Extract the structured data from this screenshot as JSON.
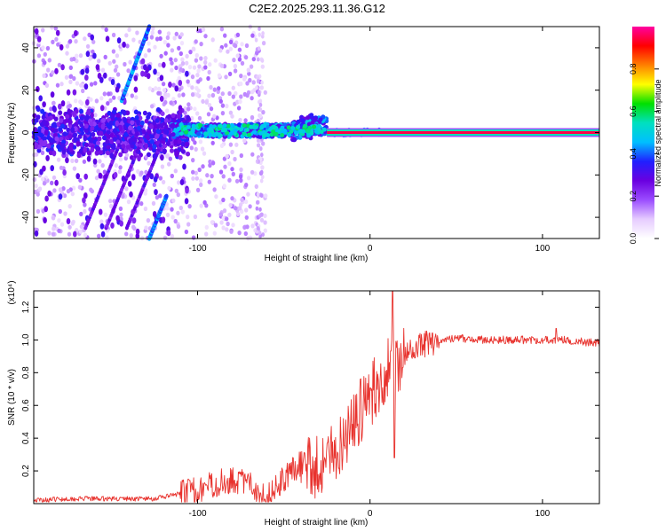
{
  "figure_title": "C2E2.2025.293.11.36.G12",
  "chart_data": [
    {
      "type": "heatmap",
      "xlabel": "Height of straight line (km)",
      "ylabel": "Frequency (Hz)",
      "xlim": [
        -195,
        133
      ],
      "ylim": [
        -50,
        50
      ],
      "xticks": [
        -100,
        0,
        100
      ],
      "xtick_labels": [
        "-100",
        "0",
        "100"
      ],
      "yticks": [
        -40,
        -20,
        0,
        20,
        40
      ],
      "ytick_labels": [
        "-40",
        "-20",
        "0",
        "20",
        "40"
      ],
      "colorbar": {
        "label": "Normalized spectral amplitude",
        "range": [
          0,
          1
        ],
        "ticks": [
          0,
          0.2,
          0.4,
          0.6,
          0.8
        ],
        "tick_labels": [
          "0.0",
          "0.2",
          "0.4",
          "0.6",
          "0.8"
        ],
        "colormap": [
          "#ffffff",
          "#e6ccff",
          "#9b4dff",
          "#6a00e0",
          "#2020ff",
          "#00bfff",
          "#00e0c0",
          "#00e000",
          "#ffff00",
          "#ff8000",
          "#ff0000",
          "#ff00a0"
        ]
      },
      "features": [
        {
          "name": "carrier line",
          "x_range": [
            -25,
            133
          ],
          "frequency": 0,
          "amplitude": 0.95
        },
        {
          "name": "signal cluster",
          "x_range": [
            -115,
            -25
          ],
          "frequency_center": 1,
          "amplitude": 0.45
        },
        {
          "name": "streak upper",
          "x_start": -144,
          "y_start": 15,
          "x_end": -128,
          "y_end": 50,
          "amplitude": 0.35
        },
        {
          "name": "streak lower",
          "x_start": -128,
          "y_start": -50,
          "x_end": -118,
          "y_end": -30,
          "amplitude": 0.35
        }
      ]
    },
    {
      "type": "line",
      "xlabel": "Height of straight line (km)",
      "ylabel": "SNR (10 * v/v)",
      "yscale_label": "(x10⁴)",
      "xlim": [
        -195,
        133
      ],
      "ylim": [
        0,
        1.3
      ],
      "xticks": [
        -100,
        0,
        100
      ],
      "xtick_labels": [
        "-100",
        "0",
        "100"
      ],
      "yticks": [
        0.2,
        0.4,
        0.6,
        0.8,
        1.0,
        1.2
      ],
      "ytick_labels": [
        "0.2",
        "0.4",
        "0.6",
        "0.8",
        "1.0",
        "1.2"
      ],
      "color": "#e8332e",
      "series": [
        {
          "name": "SNR",
          "x": [
            -195,
            -175,
            -150,
            -125,
            -110,
            -95,
            -80,
            -70,
            -60,
            -50,
            -40,
            -30,
            -20,
            -10,
            0,
            5,
            10,
            13,
            15,
            17,
            20,
            30,
            40,
            50,
            70,
            90,
            110,
            133
          ],
          "y": [
            0.02,
            0.03,
            0.03,
            0.03,
            0.06,
            0.1,
            0.15,
            0.12,
            0.05,
            0.15,
            0.25,
            0.22,
            0.32,
            0.5,
            0.65,
            0.75,
            0.8,
            0.95,
            0.85,
            0.8,
            0.9,
            0.97,
            1.0,
            1.01,
            1.0,
            1.0,
            1.0,
            0.98
          ],
          "spikes": [
            {
              "x": 13,
              "y": 1.31
            },
            {
              "x": 14,
              "y": 0.28
            },
            {
              "x": 108,
              "y": 1.07
            }
          ]
        }
      ]
    }
  ]
}
